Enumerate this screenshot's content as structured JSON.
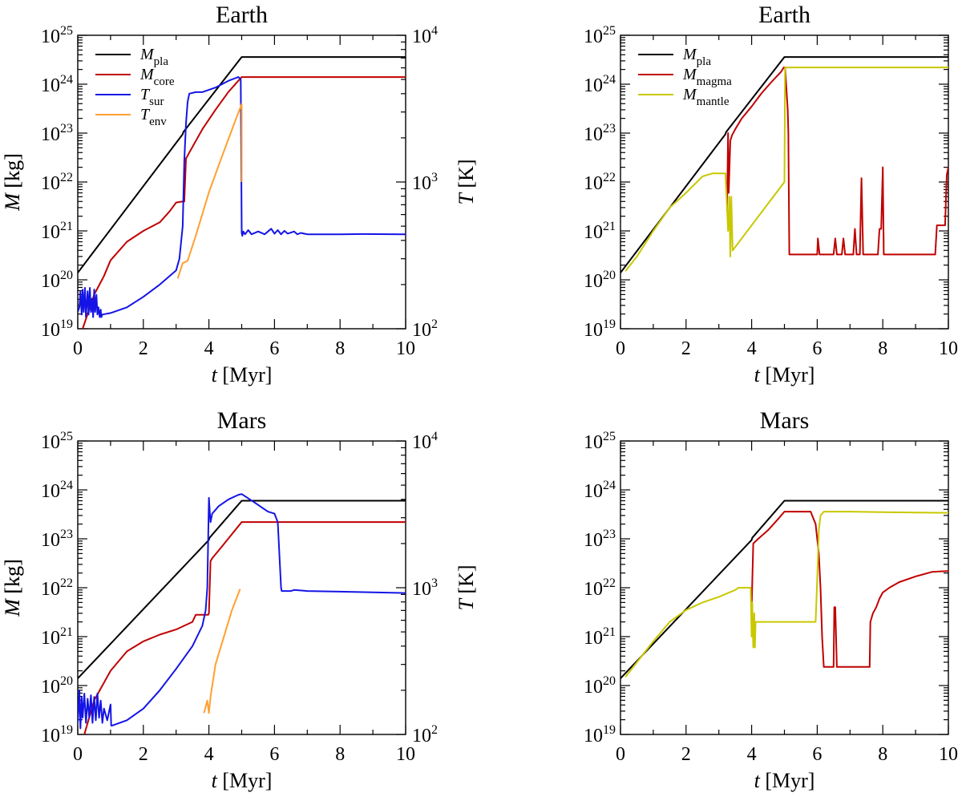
{
  "chart_data": [
    {
      "type": "line",
      "title": "Earth",
      "xlabel": "t [Myr]",
      "ylabel": "M [kg]",
      "ylabel2": "T [K]",
      "xlim": [
        0,
        10
      ],
      "ylim": [
        1e+19,
        1e+25
      ],
      "y2lim": [
        100,
        10000
      ],
      "xticks": [
        "0",
        "2",
        "4",
        "6",
        "8",
        "10"
      ],
      "yticks": [
        "10^19",
        "10^20",
        "10^21",
        "10^22",
        "10^23",
        "10^24",
        "10^25"
      ],
      "y2ticks": [
        "10^2",
        "10^3",
        "10^4"
      ],
      "legend": [
        {
          "label": "M",
          "sub": "pla",
          "color": "#000000"
        },
        {
          "label": "M",
          "sub": "core",
          "color": "#c00000"
        },
        {
          "label": "T",
          "sub": "sur",
          "color": "#1414e6"
        },
        {
          "label": "T",
          "sub": "env",
          "color": "#ffa030"
        }
      ],
      "series": [
        {
          "name": "M_pla",
          "axis": "left",
          "color": "#000000",
          "x": [
            0,
            3.2,
            3.22,
            5.0,
            10
          ],
          "y": [
            1.4e+20,
            9.5e+22,
            1.05e+23,
            3.6e+24,
            3.6e+24
          ]
        },
        {
          "name": "M_core",
          "axis": "left",
          "color": "#c00000",
          "x": [
            0.15,
            0.5,
            0.8,
            1.0,
            1.5,
            2.0,
            2.5,
            2.8,
            3.0,
            3.2,
            3.25,
            3.3,
            3.4,
            3.8,
            4.2,
            4.6,
            5.0,
            10
          ],
          "y": [
            1e+19,
            5e+19,
            1.2e+20,
            2.5e+20,
            6e+20,
            1e+21,
            1.5e+21,
            2.5e+21,
            3.8e+21,
            4e+21,
            4e+21,
            3e+22,
            4e+22,
            1.2e+23,
            3e+23,
            7e+23,
            1.4e+24,
            1.4e+24
          ]
        },
        {
          "name": "T_sur",
          "axis": "right",
          "color": "#1414e6",
          "x": [
            0,
            0.05,
            0.08,
            0.12,
            0.15,
            0.18,
            0.22,
            0.25,
            0.3,
            0.33,
            0.37,
            0.4,
            0.43,
            0.47,
            0.5,
            0.53,
            0.57,
            0.6,
            0.63,
            0.67,
            0.7,
            0.72,
            0.75,
            1.0,
            1.5,
            2.0,
            2.5,
            3.0,
            3.1,
            3.2,
            3.25,
            3.3,
            3.35,
            3.4,
            3.6,
            3.8,
            4.2,
            4.6,
            4.9,
            4.97,
            5.0,
            5.02,
            5.05,
            5.1,
            5.2,
            5.3,
            5.5,
            5.7,
            5.9,
            6.0,
            6.1,
            6.2,
            6.3,
            6.4,
            6.6,
            6.7,
            6.8,
            7.0,
            8.0,
            8.7,
            10
          ],
          "y": [
            130,
            140,
            180,
            125,
            185,
            130,
            190,
            120,
            180,
            125,
            190,
            130,
            160,
            120,
            185,
            130,
            170,
            125,
            140,
            120,
            135,
            120,
            125,
            128,
            140,
            165,
            200,
            250,
            300,
            500,
            1400,
            2500,
            3500,
            4000,
            4100,
            4100,
            4400,
            4900,
            5200,
            5000,
            450,
            430,
            460,
            440,
            470,
            440,
            460,
            440,
            480,
            445,
            470,
            440,
            465,
            445,
            460,
            440,
            450,
            440,
            440,
            442,
            440
          ]
        },
        {
          "name": "T_env",
          "axis": "right",
          "color": "#ffa030",
          "x": [
            3.05,
            3.2,
            3.35,
            3.6,
            4.0,
            4.4,
            4.8,
            5.0,
            5.0
          ],
          "y": [
            220,
            280,
            290,
            430,
            850,
            1500,
            2600,
            3400,
            1000
          ]
        }
      ]
    },
    {
      "type": "line",
      "title": "Earth",
      "xlabel": "t [Myr]",
      "ylabel": "M [kg]",
      "xlim": [
        0,
        10
      ],
      "ylim": [
        1e+19,
        1e+25
      ],
      "xticks": [
        "0",
        "2",
        "4",
        "6",
        "8",
        "10"
      ],
      "yticks": [
        "10^19",
        "10^20",
        "10^21",
        "10^22",
        "10^23",
        "10^24",
        "10^25"
      ],
      "legend": [
        {
          "label": "M",
          "sub": "pla",
          "color": "#000000"
        },
        {
          "label": "M",
          "sub": "magma",
          "color": "#c00000"
        },
        {
          "label": "M",
          "sub": "mantle",
          "color": "#c8c800"
        }
      ],
      "series": [
        {
          "name": "M_pla",
          "axis": "left",
          "color": "#000000",
          "x": [
            0,
            3.2,
            3.22,
            5.0,
            10
          ],
          "y": [
            1.4e+20,
            9.5e+22,
            1.05e+23,
            3.6e+24,
            3.6e+24
          ]
        },
        {
          "name": "M_magma",
          "axis": "left",
          "color": "#c00000",
          "x": [
            3.25,
            3.28,
            3.3,
            3.35,
            3.4,
            3.5,
            3.7,
            4.0,
            4.3,
            4.6,
            4.9,
            4.98,
            5.02,
            5.1,
            5.12,
            5.15,
            6.0,
            6.02,
            6.07,
            6.5,
            6.55,
            6.6,
            6.75,
            6.8,
            6.85,
            7.1,
            7.15,
            7.2,
            7.3,
            7.35,
            7.4,
            7.85,
            7.9,
            7.95,
            8.0,
            8.03,
            9.6,
            9.65,
            9.9,
            9.95,
            10
          ],
          "y": [
            2.5e+21,
            1e+23,
            6e+21,
            7e+22,
            9e+22,
            1.2e+23,
            2e+23,
            3.5e+23,
            6.5e+23,
            1.1e+24,
            1.8e+24,
            2.2e+24,
            2.2e+24,
            3e+23,
            1e+23,
            3.3e+20,
            3.3e+20,
            7e+20,
            3.3e+20,
            3.3e+20,
            7e+20,
            3.3e+20,
            3.3e+20,
            7e+20,
            3.3e+20,
            3.3e+20,
            1.1e+21,
            3.3e+20,
            3.3e+20,
            1.2e+22,
            3.3e+20,
            3.3e+20,
            1.1e+21,
            1.1e+21,
            2e+22,
            3.3e+20,
            3.3e+20,
            1.3e+21,
            1.3e+21,
            1.4e+22,
            2e+22
          ]
        },
        {
          "name": "M_mantle",
          "axis": "left",
          "color": "#c8c800",
          "x": [
            0.15,
            0.5,
            1.0,
            1.5,
            2.0,
            2.5,
            2.8,
            3.0,
            3.2,
            3.25,
            3.28,
            3.32,
            3.35,
            3.38,
            3.42,
            5.0,
            5.02,
            5.05,
            5.1,
            10
          ],
          "y": [
            1.5e+20,
            3e+20,
            1e+21,
            3e+21,
            6e+21,
            1.3e+22,
            1.5e+22,
            1.5e+22,
            1.5e+22,
            3e+21,
            1e+21,
            5e+21,
            3e+20,
            5e+21,
            4e+20,
            1e+22,
            2.2e+24,
            2.2e+24,
            2.2e+24,
            2.2e+24
          ]
        }
      ]
    },
    {
      "type": "line",
      "title": "Mars",
      "xlabel": "t [Myr]",
      "ylabel": "M [kg]",
      "ylabel2": "T [K]",
      "xlim": [
        0,
        10
      ],
      "ylim": [
        1e+19,
        1e+25
      ],
      "y2lim": [
        100,
        10000
      ],
      "xticks": [
        "0",
        "2",
        "4",
        "6",
        "8",
        "10"
      ],
      "yticks": [
        "10^19",
        "10^20",
        "10^21",
        "10^22",
        "10^23",
        "10^24",
        "10^25"
      ],
      "y2ticks": [
        "10^2",
        "10^3",
        "10^4"
      ],
      "series": [
        {
          "name": "M_pla",
          "axis": "left",
          "color": "#000000",
          "x": [
            0,
            4.0,
            4.02,
            5.0,
            10
          ],
          "y": [
            1.4e+20,
            9.5e+22,
            1.05e+23,
            6e+23,
            6e+23
          ]
        },
        {
          "name": "M_core",
          "axis": "left",
          "color": "#c00000",
          "x": [
            0.2,
            0.5,
            1.0,
            1.5,
            2.0,
            2.5,
            3.0,
            3.5,
            3.6,
            3.7,
            3.98,
            4.0,
            4.05,
            4.1,
            4.4,
            4.8,
            5.0,
            10
          ],
          "y": [
            1e+19,
            5e+19,
            2e+20,
            5e+20,
            8e+20,
            1.1e+21,
            1.4e+21,
            2e+21,
            2.8e+21,
            2.8e+21,
            2.8e+21,
            3e+21,
            3.5e+22,
            4e+22,
            7e+22,
            1.5e+23,
            2.2e+23,
            2.2e+23
          ]
        },
        {
          "name": "T_sur",
          "axis": "right",
          "color": "#1414e6",
          "x": [
            0,
            0.05,
            0.08,
            0.12,
            0.15,
            0.2,
            0.25,
            0.3,
            0.35,
            0.4,
            0.45,
            0.5,
            0.55,
            0.6,
            0.65,
            0.7,
            0.75,
            0.8,
            0.9,
            1.0,
            1.02,
            1.05,
            1.5,
            2.0,
            2.5,
            3.0,
            3.5,
            3.8,
            3.9,
            3.95,
            4.0,
            4.03,
            4.05,
            4.1,
            4.3,
            4.6,
            4.9,
            5.0,
            5.4,
            5.8,
            6.0,
            6.1,
            6.2,
            6.22,
            6.5,
            6.6,
            7.0,
            8.0,
            10
          ],
          "y": [
            120,
            200,
            110,
            180,
            130,
            190,
            120,
            175,
            130,
            185,
            120,
            180,
            125,
            190,
            130,
            170,
            120,
            150,
            125,
            160,
            115,
            115,
            125,
            150,
            200,
            280,
            400,
            550,
            700,
            1000,
            4100,
            3200,
            2800,
            3200,
            3600,
            4000,
            4300,
            4350,
            3800,
            3300,
            3200,
            2800,
            1000,
            950,
            950,
            965,
            950,
            940,
            920
          ]
        },
        {
          "name": "T_env",
          "axis": "right",
          "color": "#ffa030",
          "x": [
            3.85,
            3.92,
            3.95,
            4.0,
            4.05,
            4.2,
            4.5,
            4.7,
            4.95
          ],
          "y": [
            140,
            160,
            170,
            140,
            180,
            300,
            500,
            700,
            980
          ]
        }
      ]
    },
    {
      "type": "line",
      "title": "Mars",
      "xlabel": "t [Myr]",
      "ylabel": "M [kg]",
      "xlim": [
        0,
        10
      ],
      "ylim": [
        1e+19,
        1e+25
      ],
      "xticks": [
        "0",
        "2",
        "4",
        "6",
        "8",
        "10"
      ],
      "yticks": [
        "10^19",
        "10^20",
        "10^21",
        "10^22",
        "10^23",
        "10^24",
        "10^25"
      ],
      "series": [
        {
          "name": "M_pla",
          "axis": "left",
          "color": "#000000",
          "x": [
            0,
            4.0,
            4.02,
            5.0,
            10
          ],
          "y": [
            1.4e+20,
            9.5e+22,
            1.05e+23,
            6e+23,
            6e+23
          ]
        },
        {
          "name": "M_magma",
          "axis": "left",
          "color": "#c00000",
          "x": [
            4.0,
            4.05,
            4.2,
            4.5,
            4.8,
            5.0,
            5.5,
            5.8,
            5.95,
            6.05,
            6.1,
            6.15,
            6.2,
            6.5,
            6.52,
            6.55,
            6.6,
            7.6,
            7.62,
            7.7,
            7.8,
            7.9,
            8.0,
            8.2,
            8.5,
            9.0,
            9.5,
            10
          ],
          "y": [
            4e+21,
            8e+22,
            1e+23,
            1.5e+23,
            2.5e+23,
            3.6e+23,
            3.6e+23,
            3.6e+23,
            2e+23,
            5e+22,
            1e+22,
            1e+21,
            2.4e+20,
            2.4e+20,
            4e+21,
            4e+21,
            2.4e+20,
            2.4e+20,
            2e+21,
            3e+21,
            4e+21,
            6e+21,
            8e+21,
            1e+22,
            1.3e+22,
            1.7e+22,
            2.1e+22,
            2.2e+22
          ]
        },
        {
          "name": "M_mantle",
          "axis": "left",
          "color": "#c8c800",
          "x": [
            0.15,
            0.5,
            1.0,
            1.5,
            2.0,
            2.5,
            3.0,
            3.5,
            3.6,
            3.7,
            3.97,
            4.0,
            4.02,
            4.05,
            4.08,
            4.1,
            4.12,
            5.95,
            6.0,
            6.05,
            6.1,
            6.2,
            7.0,
            8.0,
            10
          ],
          "y": [
            1.5e+20,
            3e+20,
            8e+20,
            2e+21,
            3.5e+21,
            5e+21,
            6.5e+21,
            9e+21,
            1e+22,
            1e+22,
            1e+22,
            1e+21,
            5e+21,
            6e+20,
            3e+21,
            6e+20,
            2e+21,
            2e+21,
            1.5e+22,
            1.5e+23,
            3e+23,
            3.6e+23,
            3.6e+23,
            3.5e+23,
            3.4e+23
          ]
        }
      ]
    }
  ]
}
